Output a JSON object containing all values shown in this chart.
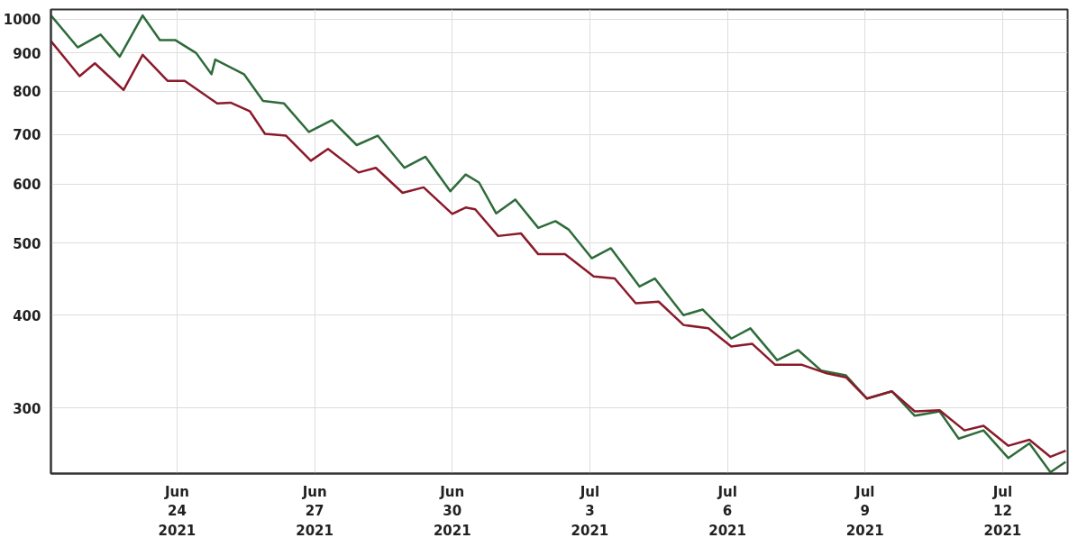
{
  "chart_data": {
    "type": "line",
    "log": "y",
    "grid": true,
    "marker": "none",
    "line_style": "solid",
    "xlim": [
      "2021-06-21T06:00",
      "2021-07-13T10:00"
    ],
    "xticks": [
      {
        "value": "2021-06-24",
        "label": "Jun\n24\n2021"
      },
      {
        "value": "2021-06-27",
        "label": "Jun\n27\n2021"
      },
      {
        "value": "2021-06-30",
        "label": "Jun\n30\n2021"
      },
      {
        "value": "2021-07-03",
        "label": "Jul\n3\n2021"
      },
      {
        "value": "2021-07-06",
        "label": "Jul\n6\n2021"
      },
      {
        "value": "2021-07-09",
        "label": "Jul\n9\n2021"
      },
      {
        "value": "2021-07-12",
        "label": "Jul\n12\n2021"
      }
    ],
    "ylim": [
      245,
      1030
    ],
    "yticks": [
      300,
      400,
      500,
      600,
      700,
      800,
      900,
      1000
    ],
    "series": [
      {
        "color": "#2e6b3a",
        "x": [
          "2021-06-21T06:00",
          "2021-06-21T20:00",
          "2021-06-22T08:00",
          "2021-06-22T18:00",
          "2021-06-23T06:00",
          "2021-06-23T15:00",
          "2021-06-23T23:00",
          "2021-06-24T10:00",
          "2021-06-24T18:00",
          "2021-06-24T20:00",
          "2021-06-25T11:00",
          "2021-06-25T21:00",
          "2021-06-26T08:00",
          "2021-06-26T21:00",
          "2021-06-27T09:00",
          "2021-06-27T22:00",
          "2021-06-28T09:00",
          "2021-06-28T23:00",
          "2021-06-29T10:00",
          "2021-06-29T23:00",
          "2021-06-30T07:00",
          "2021-06-30T14:00",
          "2021-06-30T23:00",
          "2021-07-01T09:00",
          "2021-07-01T21:00",
          "2021-07-02T06:00",
          "2021-07-02T13:00",
          "2021-07-03T01:00",
          "2021-07-03T11:00",
          "2021-07-04T02:00",
          "2021-07-04T10:00",
          "2021-07-05T01:00",
          "2021-07-05T11:00",
          "2021-07-06T02:00",
          "2021-07-06T12:00",
          "2021-07-07T02:00",
          "2021-07-07T13:00",
          "2021-07-08T01:00",
          "2021-07-08T14:00",
          "2021-07-09T01:00",
          "2021-07-09T14:00",
          "2021-07-10T02:00",
          "2021-07-10T15:00",
          "2021-07-11T01:00",
          "2021-07-11T14:00",
          "2021-07-12T03:00",
          "2021-07-12T14:00",
          "2021-07-13T01:00",
          "2021-07-13T09:00"
        ],
        "values": [
          1011,
          916,
          953,
          890,
          1011,
          937,
          937,
          900,
          843,
          882,
          843,
          776,
          770,
          705,
          731,
          677,
          697,
          631,
          653,
          587,
          618,
          603,
          548,
          572,
          524,
          535,
          521,
          477,
          492,
          437,
          448,
          400,
          407,
          372,
          384,
          348,
          359,
          337,
          332,
          309,
          316,
          293,
          297,
          273,
          280,
          257,
          269,
          246,
          254
        ]
      },
      {
        "color": "#8b1a2a",
        "x": [
          "2021-06-21T06:00",
          "2021-06-21T21:00",
          "2021-06-22T05:00",
          "2021-06-22T20:00",
          "2021-06-23T06:00",
          "2021-06-23T19:00",
          "2021-06-24T04:00",
          "2021-06-24T21:00",
          "2021-06-25T04:00",
          "2021-06-25T14:00",
          "2021-06-25T22:00",
          "2021-06-26T09:00",
          "2021-06-26T22:00",
          "2021-06-27T07:00",
          "2021-06-27T23:00",
          "2021-06-28T08:00",
          "2021-06-28T22:00",
          "2021-06-29T09:00",
          "2021-06-30T00:00",
          "2021-06-30T07:00",
          "2021-06-30T12:00",
          "2021-07-01T00:00",
          "2021-07-01T12:00",
          "2021-07-01T21:00",
          "2021-07-02T11:00",
          "2021-07-03T02:00",
          "2021-07-03T13:00",
          "2021-07-04T00:00",
          "2021-07-04T12:00",
          "2021-07-05T01:00",
          "2021-07-05T14:00",
          "2021-07-06T02:00",
          "2021-07-06T13:00",
          "2021-07-07T01:00",
          "2021-07-07T15:00",
          "2021-07-08T04:00",
          "2021-07-08T14:00",
          "2021-07-09T01:00",
          "2021-07-09T14:00",
          "2021-07-10T02:00",
          "2021-07-10T15:00",
          "2021-07-11T04:00",
          "2021-07-11T14:00",
          "2021-07-12T03:00",
          "2021-07-12T14:00",
          "2021-07-13T01:00",
          "2021-07-13T09:00"
        ],
        "values": [
          934,
          838,
          872,
          803,
          895,
          826,
          826,
          770,
          772,
          752,
          701,
          697,
          645,
          669,
          622,
          631,
          584,
          594,
          547,
          558,
          555,
          511,
          515,
          483,
          483,
          451,
          448,
          415,
          417,
          388,
          384,
          363,
          366,
          343,
          343,
          334,
          330,
          309,
          316,
          297,
          298,
          280,
          284,
          267,
          272,
          258,
          263
        ]
      }
    ]
  }
}
